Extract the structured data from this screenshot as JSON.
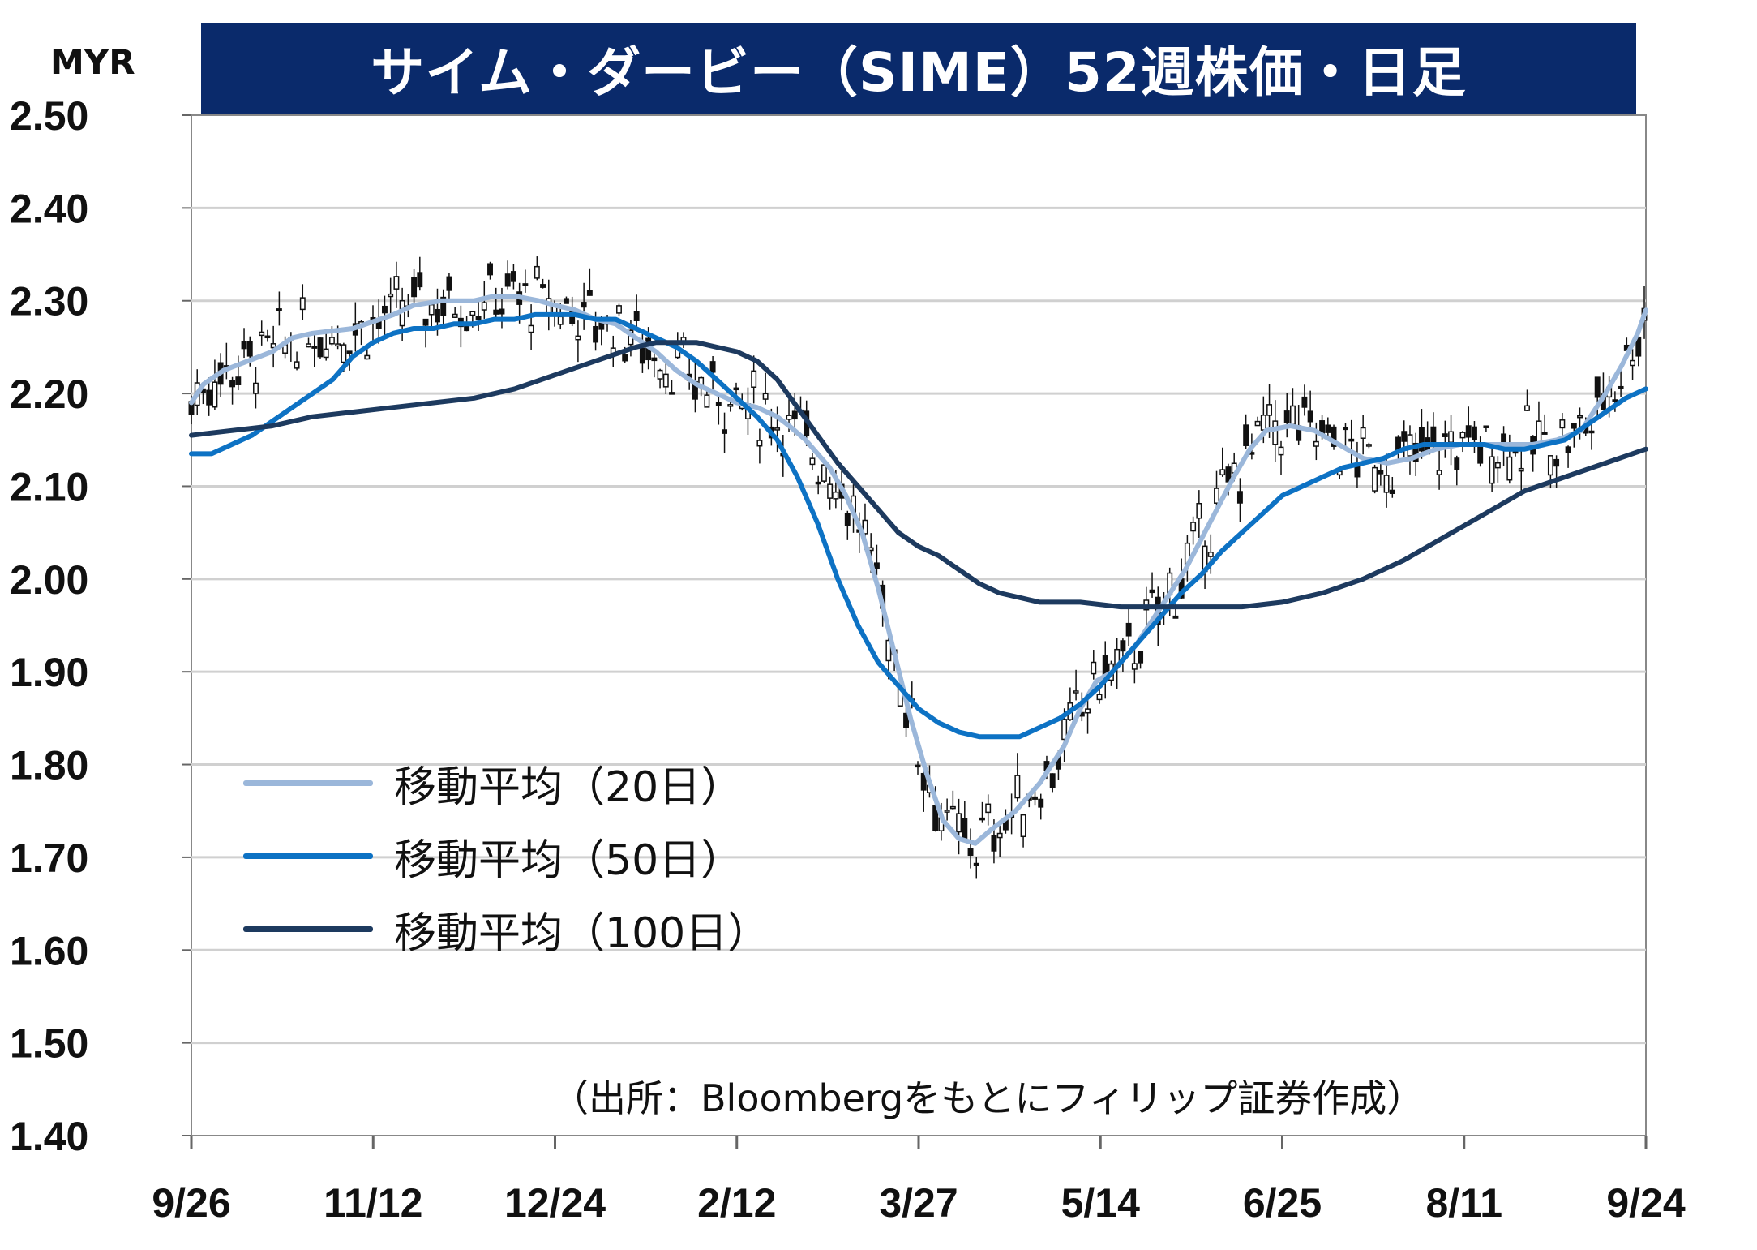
{
  "title": "サイム・ダービー（SIME）52週株価・日足",
  "unit": "MYR",
  "source": "（出所：Bloombergをもとにフィリップ証券作成）",
  "colors": {
    "title_bg": "#0a2a6b",
    "ma20": "#9bb7da",
    "ma50": "#0d72c4",
    "ma100": "#1d3a5f",
    "candle": "#111111",
    "grid": "#d0d0d0"
  },
  "chart_data": {
    "type": "candlestick",
    "title": "サイム・ダービー（SIME）52週株価・日足",
    "ylabel": "MYR",
    "ylim": [
      1.4,
      2.5
    ],
    "yticks": [
      "2.50",
      "2.40",
      "2.30",
      "2.20",
      "2.10",
      "2.00",
      "1.90",
      "1.80",
      "1.70",
      "1.60",
      "1.50",
      "1.40"
    ],
    "x_tick_labels": [
      "9/26",
      "11/12",
      "12/24",
      "2/12",
      "3/27",
      "5/14",
      "6/25",
      "8/11",
      "9/24"
    ],
    "x_range_index": [
      0,
      360
    ],
    "x_tick_positions": [
      0,
      45,
      90,
      135,
      180,
      225,
      270,
      315,
      360
    ],
    "grid": true,
    "legend_position": "left",
    "series": [
      {
        "name": "移動平均（20日）",
        "color": "#9bb7da",
        "points": [
          [
            0,
            2.19
          ],
          [
            3,
            2.21
          ],
          [
            8,
            2.225
          ],
          [
            14,
            2.235
          ],
          [
            20,
            2.245
          ],
          [
            25,
            2.26
          ],
          [
            30,
            2.265
          ],
          [
            40,
            2.27
          ],
          [
            50,
            2.285
          ],
          [
            55,
            2.295
          ],
          [
            62,
            2.3
          ],
          [
            70,
            2.3
          ],
          [
            75,
            2.305
          ],
          [
            80,
            2.305
          ],
          [
            86,
            2.3
          ],
          [
            90,
            2.295
          ],
          [
            95,
            2.29
          ],
          [
            100,
            2.28
          ],
          [
            105,
            2.275
          ],
          [
            110,
            2.26
          ],
          [
            115,
            2.245
          ],
          [
            120,
            2.225
          ],
          [
            125,
            2.21
          ],
          [
            130,
            2.2
          ],
          [
            135,
            2.19
          ],
          [
            140,
            2.185
          ],
          [
            145,
            2.175
          ],
          [
            148,
            2.165
          ],
          [
            152,
            2.15
          ],
          [
            158,
            2.12
          ],
          [
            162,
            2.09
          ],
          [
            166,
            2.05
          ],
          [
            170,
            1.99
          ],
          [
            174,
            1.92
          ],
          [
            178,
            1.85
          ],
          [
            182,
            1.79
          ],
          [
            186,
            1.74
          ],
          [
            190,
            1.72
          ],
          [
            194,
            1.715
          ],
          [
            198,
            1.73
          ],
          [
            204,
            1.75
          ],
          [
            210,
            1.78
          ],
          [
            216,
            1.82
          ],
          [
            220,
            1.86
          ],
          [
            224,
            1.89
          ],
          [
            228,
            1.9
          ],
          [
            234,
            1.93
          ],
          [
            240,
            1.97
          ],
          [
            246,
            2.01
          ],
          [
            252,
            2.06
          ],
          [
            258,
            2.11
          ],
          [
            262,
            2.14
          ],
          [
            266,
            2.16
          ],
          [
            272,
            2.165
          ],
          [
            278,
            2.16
          ],
          [
            284,
            2.145
          ],
          [
            290,
            2.13
          ],
          [
            296,
            2.125
          ],
          [
            302,
            2.13
          ],
          [
            308,
            2.14
          ],
          [
            314,
            2.145
          ],
          [
            320,
            2.145
          ],
          [
            326,
            2.145
          ],
          [
            332,
            2.145
          ],
          [
            338,
            2.15
          ],
          [
            344,
            2.16
          ],
          [
            350,
            2.2
          ],
          [
            354,
            2.23
          ],
          [
            358,
            2.265
          ],
          [
            360,
            2.29
          ]
        ]
      },
      {
        "name": "移動平均（50日）",
        "color": "#0d72c4",
        "points": [
          [
            0,
            2.135
          ],
          [
            5,
            2.135
          ],
          [
            10,
            2.145
          ],
          [
            15,
            2.155
          ],
          [
            20,
            2.17
          ],
          [
            25,
            2.185
          ],
          [
            30,
            2.2
          ],
          [
            35,
            2.215
          ],
          [
            40,
            2.24
          ],
          [
            45,
            2.255
          ],
          [
            50,
            2.265
          ],
          [
            55,
            2.27
          ],
          [
            60,
            2.27
          ],
          [
            65,
            2.275
          ],
          [
            70,
            2.275
          ],
          [
            75,
            2.28
          ],
          [
            80,
            2.28
          ],
          [
            85,
            2.285
          ],
          [
            90,
            2.285
          ],
          [
            95,
            2.285
          ],
          [
            100,
            2.28
          ],
          [
            105,
            2.28
          ],
          [
            110,
            2.27
          ],
          [
            115,
            2.26
          ],
          [
            120,
            2.25
          ],
          [
            125,
            2.235
          ],
          [
            130,
            2.215
          ],
          [
            135,
            2.195
          ],
          [
            140,
            2.175
          ],
          [
            145,
            2.15
          ],
          [
            150,
            2.11
          ],
          [
            155,
            2.06
          ],
          [
            160,
            2.0
          ],
          [
            165,
            1.95
          ],
          [
            170,
            1.91
          ],
          [
            175,
            1.885
          ],
          [
            180,
            1.86
          ],
          [
            185,
            1.845
          ],
          [
            190,
            1.835
          ],
          [
            195,
            1.83
          ],
          [
            200,
            1.83
          ],
          [
            205,
            1.83
          ],
          [
            210,
            1.84
          ],
          [
            215,
            1.85
          ],
          [
            220,
            1.865
          ],
          [
            225,
            1.885
          ],
          [
            230,
            1.91
          ],
          [
            235,
            1.935
          ],
          [
            240,
            1.96
          ],
          [
            245,
            1.985
          ],
          [
            250,
            2.005
          ],
          [
            255,
            2.03
          ],
          [
            260,
            2.05
          ],
          [
            265,
            2.07
          ],
          [
            270,
            2.09
          ],
          [
            275,
            2.1
          ],
          [
            280,
            2.11
          ],
          [
            285,
            2.12
          ],
          [
            290,
            2.125
          ],
          [
            295,
            2.13
          ],
          [
            300,
            2.14
          ],
          [
            305,
            2.145
          ],
          [
            310,
            2.145
          ],
          [
            315,
            2.145
          ],
          [
            320,
            2.145
          ],
          [
            325,
            2.14
          ],
          [
            330,
            2.14
          ],
          [
            335,
            2.145
          ],
          [
            340,
            2.15
          ],
          [
            345,
            2.165
          ],
          [
            350,
            2.18
          ],
          [
            355,
            2.195
          ],
          [
            360,
            2.205
          ]
        ]
      },
      {
        "name": "移動平均（100日）",
        "color": "#1d3a5f",
        "points": [
          [
            0,
            2.155
          ],
          [
            10,
            2.16
          ],
          [
            20,
            2.165
          ],
          [
            30,
            2.175
          ],
          [
            40,
            2.18
          ],
          [
            50,
            2.185
          ],
          [
            60,
            2.19
          ],
          [
            70,
            2.195
          ],
          [
            80,
            2.205
          ],
          [
            90,
            2.22
          ],
          [
            100,
            2.235
          ],
          [
            110,
            2.25
          ],
          [
            115,
            2.255
          ],
          [
            120,
            2.255
          ],
          [
            125,
            2.255
          ],
          [
            130,
            2.25
          ],
          [
            135,
            2.245
          ],
          [
            140,
            2.235
          ],
          [
            145,
            2.215
          ],
          [
            150,
            2.185
          ],
          [
            155,
            2.155
          ],
          [
            160,
            2.125
          ],
          [
            165,
            2.1
          ],
          [
            170,
            2.075
          ],
          [
            175,
            2.05
          ],
          [
            180,
            2.035
          ],
          [
            185,
            2.025
          ],
          [
            190,
            2.01
          ],
          [
            195,
            1.995
          ],
          [
            200,
            1.985
          ],
          [
            205,
            1.98
          ],
          [
            210,
            1.975
          ],
          [
            220,
            1.975
          ],
          [
            230,
            1.97
          ],
          [
            240,
            1.97
          ],
          [
            250,
            1.97
          ],
          [
            260,
            1.97
          ],
          [
            270,
            1.975
          ],
          [
            280,
            1.985
          ],
          [
            290,
            2.0
          ],
          [
            300,
            2.02
          ],
          [
            310,
            2.045
          ],
          [
            320,
            2.07
          ],
          [
            330,
            2.095
          ],
          [
            340,
            2.11
          ],
          [
            350,
            2.125
          ],
          [
            360,
            2.14
          ]
        ]
      }
    ]
  }
}
